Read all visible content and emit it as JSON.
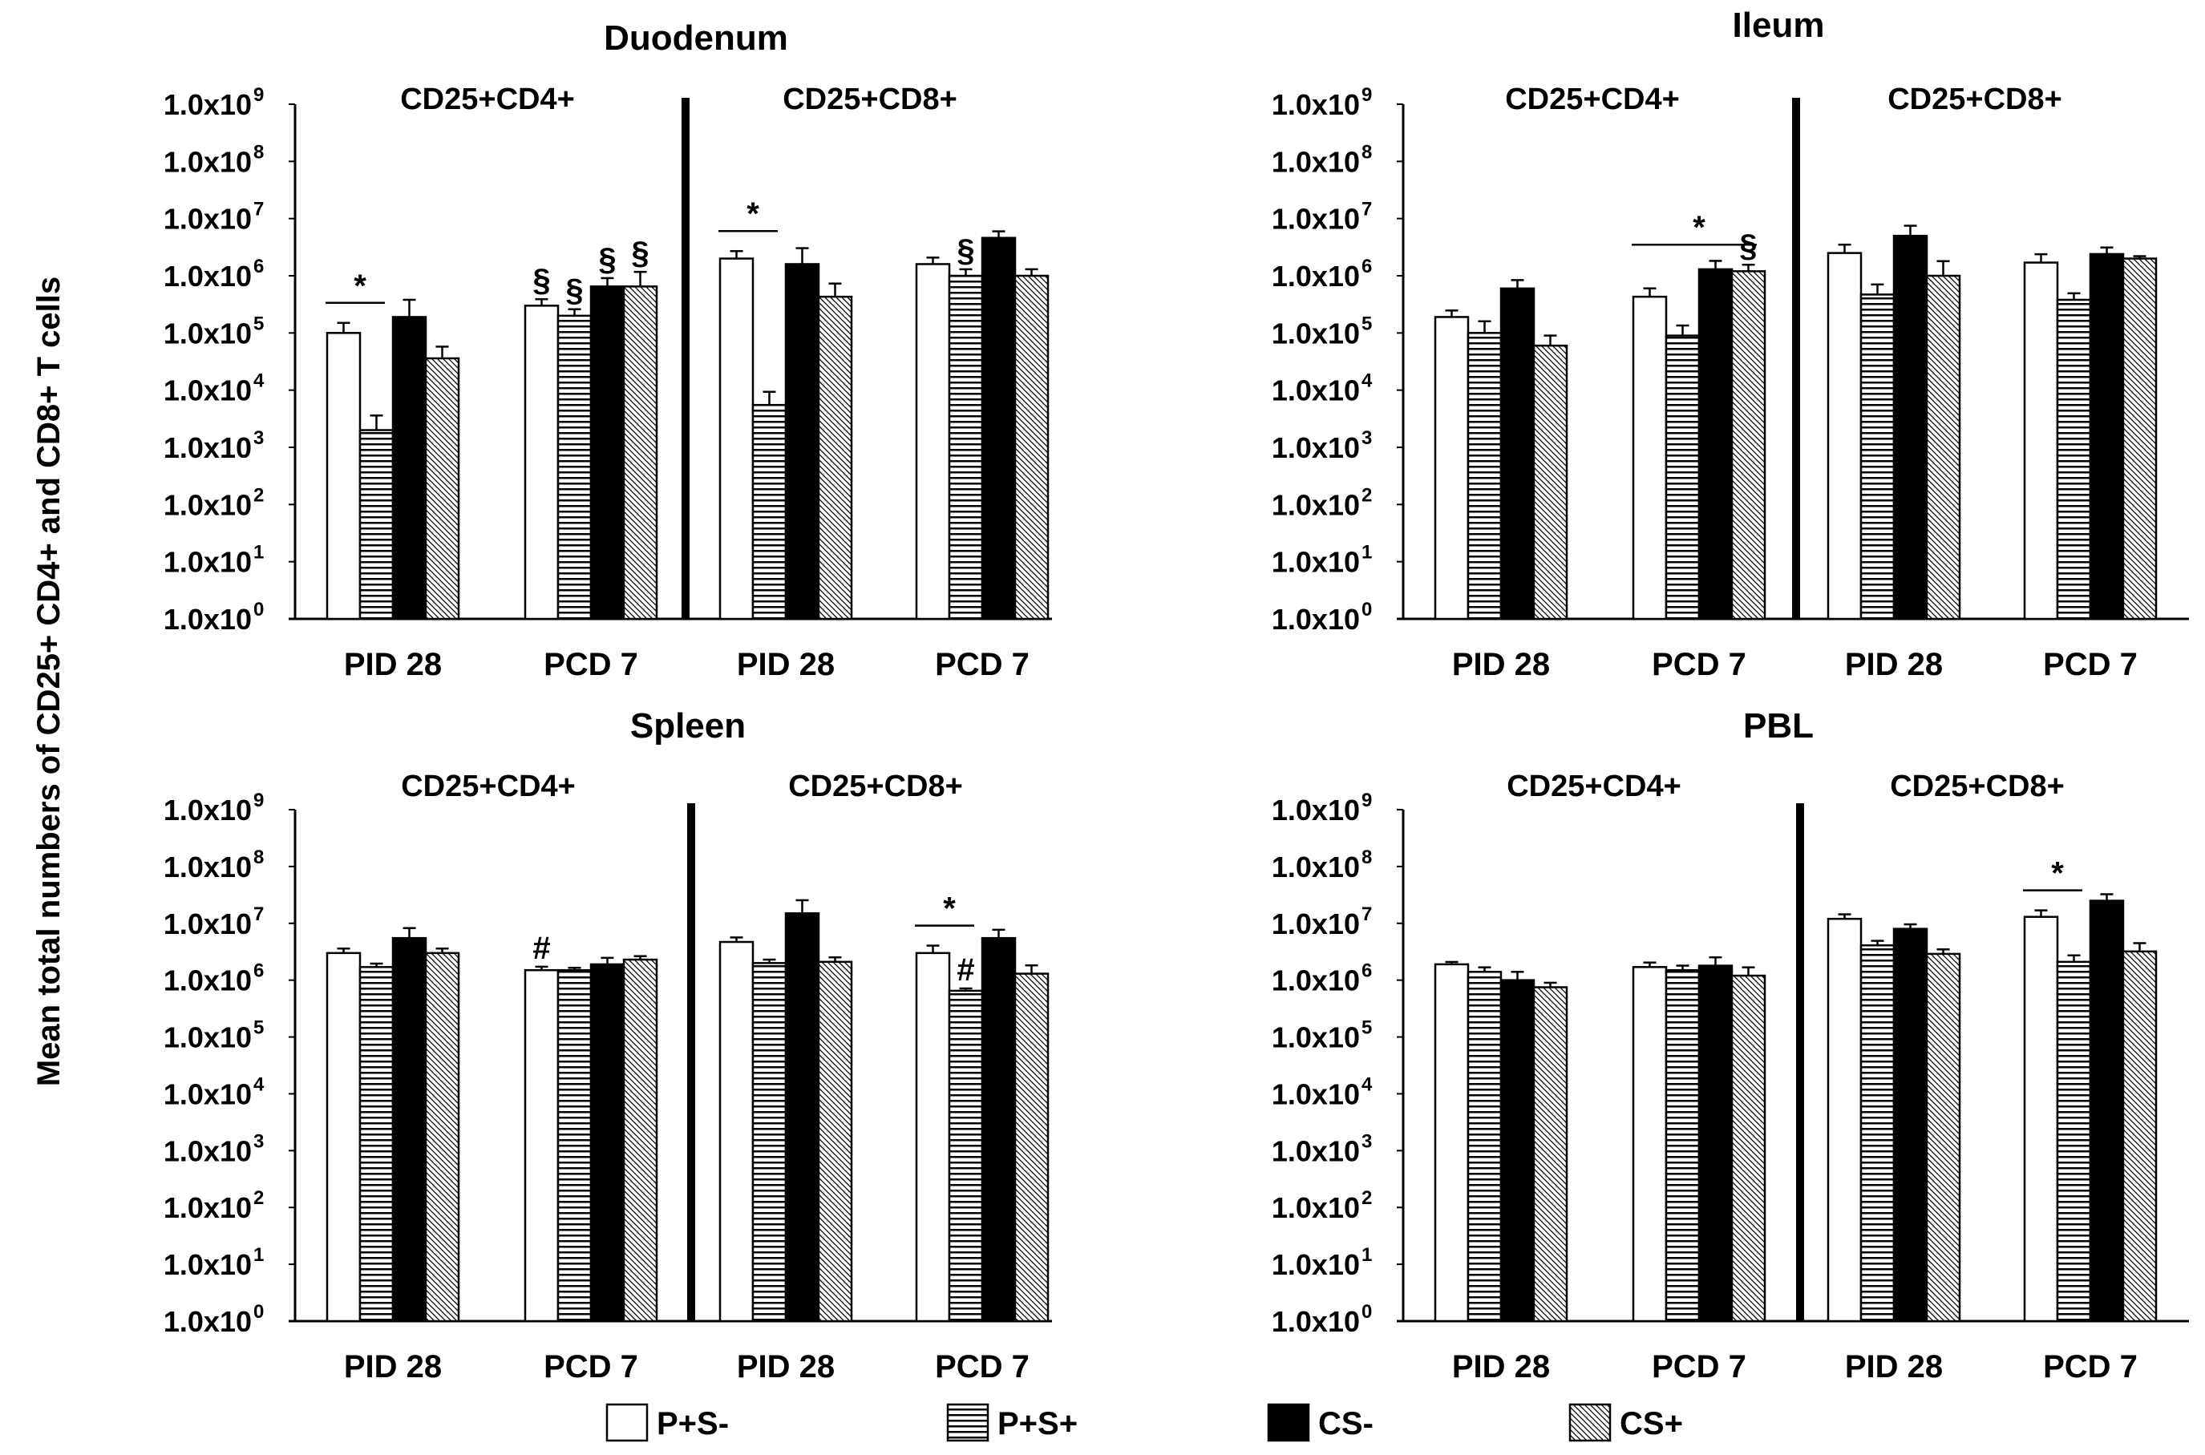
{
  "figure": {
    "ylabel": "Mean total numbers of CD25+ CD4+ and CD8+ T cells",
    "tick_mantissa": "1.0x10",
    "ytick_exponents": [
      "0",
      "1",
      "2",
      "3",
      "4",
      "5",
      "6",
      "7",
      "8",
      "9"
    ]
  },
  "legend": [
    {
      "name": "P+S-",
      "pattern": "white"
    },
    {
      "name": "P+S+",
      "pattern": "hstripe"
    },
    {
      "name": "CS-",
      "pattern": "black"
    },
    {
      "name": "CS+",
      "pattern": "dots"
    }
  ],
  "colors": {
    "ink": "#000000",
    "background": "#ffffff"
  },
  "chart_data": [
    {
      "type": "bar",
      "title": "Duodenum",
      "yscale": "log10",
      "ylim": [
        1,
        1000000000
      ],
      "subsets": [
        "CD25+CD4+",
        "CD25+CD8+"
      ],
      "categories": [
        "PID 28",
        "PCD 7",
        "PID 28",
        "PCD 7"
      ],
      "series": [
        {
          "name": "P+S-",
          "values": [
            100000,
            300000,
            2000000,
            1600000
          ],
          "errors": [
            1.5,
            1.3,
            1.35,
            1.3
          ]
        },
        {
          "name": "P+S+",
          "values": [
            2000,
            200000,
            5500,
            1000000
          ],
          "errors": [
            1.8,
            1.3,
            1.7,
            1.3
          ]
        },
        {
          "name": "CS-",
          "values": [
            190000,
            650000,
            1600000,
            4600000
          ],
          "errors": [
            2.0,
            1.4,
            1.9,
            1.3
          ]
        },
        {
          "name": "CS+",
          "values": [
            36000,
            650000,
            430000,
            1000000
          ],
          "errors": [
            1.6,
            1.8,
            1.7,
            1.3
          ]
        }
      ],
      "significance": [
        {
          "symbol": "*",
          "subset": 0,
          "category": "PID 28",
          "between": [
            "P+S-",
            "P+S+"
          ]
        },
        {
          "symbol": "§",
          "subset": 0,
          "category": "PCD 7",
          "series": "P+S-"
        },
        {
          "symbol": "§",
          "subset": 0,
          "category": "PCD 7",
          "series": "P+S+"
        },
        {
          "symbol": "§",
          "subset": 0,
          "category": "PCD 7",
          "series": "CS-"
        },
        {
          "symbol": "§",
          "subset": 0,
          "category": "PCD 7",
          "series": "CS+"
        },
        {
          "symbol": "*",
          "subset": 1,
          "category": "PID 28",
          "between": [
            "P+S-",
            "P+S+"
          ]
        },
        {
          "symbol": "§",
          "subset": 1,
          "category": "PCD 7",
          "series": "P+S+"
        }
      ]
    },
    {
      "type": "bar",
      "title": "Ileum",
      "yscale": "log10",
      "ylim": [
        1,
        1000000000
      ],
      "subsets": [
        "CD25+CD4+",
        "CD25+CD8+"
      ],
      "categories": [
        "PID 28",
        "PCD 7",
        "PID 28",
        "PCD 7"
      ],
      "series": [
        {
          "name": "P+S-",
          "values": [
            190000,
            430000,
            2500000,
            1700000
          ],
          "errors": [
            1.3,
            1.4,
            1.4,
            1.4
          ]
        },
        {
          "name": "P+S+",
          "values": [
            100000,
            90000,
            470000,
            380000
          ],
          "errors": [
            1.6,
            1.5,
            1.5,
            1.3
          ]
        },
        {
          "name": "CS-",
          "values": [
            600000,
            1300000,
            5000000,
            2400000
          ],
          "errors": [
            1.4,
            1.4,
            1.5,
            1.3
          ]
        },
        {
          "name": "CS+",
          "values": [
            60000,
            1200000,
            1000000,
            2000000
          ],
          "errors": [
            1.5,
            1.3,
            1.8,
            1.1
          ]
        }
      ],
      "significance": [
        {
          "symbol": "*",
          "subset": 0,
          "category": "PCD 7",
          "between": [
            "P+S-",
            "CS+"
          ]
        },
        {
          "symbol": "§",
          "subset": 0,
          "category": "PCD 7",
          "series": "CS+"
        }
      ]
    },
    {
      "type": "bar",
      "title": "Spleen",
      "yscale": "log10",
      "ylim": [
        1,
        1000000000
      ],
      "subsets": [
        "CD25+CD4+",
        "CD25+CD8+"
      ],
      "categories": [
        "PID 28",
        "PCD 7",
        "PID 28",
        "PCD 7"
      ],
      "series": [
        {
          "name": "P+S-",
          "values": [
            3000000,
            1500000,
            4700000,
            3000000
          ],
          "errors": [
            1.2,
            1.15,
            1.2,
            1.35
          ]
        },
        {
          "name": "P+S+",
          "values": [
            1700000,
            1500000,
            2000000,
            650000
          ],
          "errors": [
            1.15,
            1.1,
            1.15,
            1.1
          ]
        },
        {
          "name": "CS-",
          "values": [
            5500000,
            1900000,
            15000000,
            5500000
          ],
          "errors": [
            1.5,
            1.3,
            1.7,
            1.4
          ]
        },
        {
          "name": "CS+",
          "values": [
            3000000,
            2300000,
            2100000,
            1300000
          ],
          "errors": [
            1.2,
            1.15,
            1.2,
            1.4
          ]
        }
      ],
      "significance": [
        {
          "symbol": "#",
          "subset": 0,
          "category": "PCD 7",
          "series": "P+S-"
        },
        {
          "symbol": "*",
          "subset": 1,
          "category": "PCD 7",
          "between": [
            "P+S-",
            "P+S+"
          ]
        },
        {
          "symbol": "#",
          "subset": 1,
          "category": "PCD 7",
          "series": "P+S+"
        }
      ]
    },
    {
      "type": "bar",
      "title": "PBL",
      "yscale": "log10",
      "ylim": [
        1,
        1000000000
      ],
      "subsets": [
        "CD25+CD4+",
        "CD25+CD8+"
      ],
      "categories": [
        "PID 28",
        "PCD 7",
        "PID 28",
        "PCD 7"
      ],
      "series": [
        {
          "name": "P+S-",
          "values": [
            1900000,
            1700000,
            12000000,
            13000000
          ],
          "errors": [
            1.1,
            1.2,
            1.2,
            1.3
          ]
        },
        {
          "name": "P+S+",
          "values": [
            1400000,
            1500000,
            4100000,
            2100000
          ],
          "errors": [
            1.2,
            1.2,
            1.2,
            1.3
          ]
        },
        {
          "name": "CS-",
          "values": [
            1000000,
            1800000,
            8000000,
            25000000
          ],
          "errors": [
            1.4,
            1.4,
            1.2,
            1.3
          ]
        },
        {
          "name": "CS+",
          "values": [
            750000,
            1200000,
            2900000,
            3200000
          ],
          "errors": [
            1.2,
            1.4,
            1.2,
            1.4
          ]
        }
      ],
      "significance": [
        {
          "symbol": "*",
          "subset": 1,
          "category": "PCD 7",
          "between": [
            "P+S-",
            "P+S+"
          ]
        }
      ]
    }
  ]
}
